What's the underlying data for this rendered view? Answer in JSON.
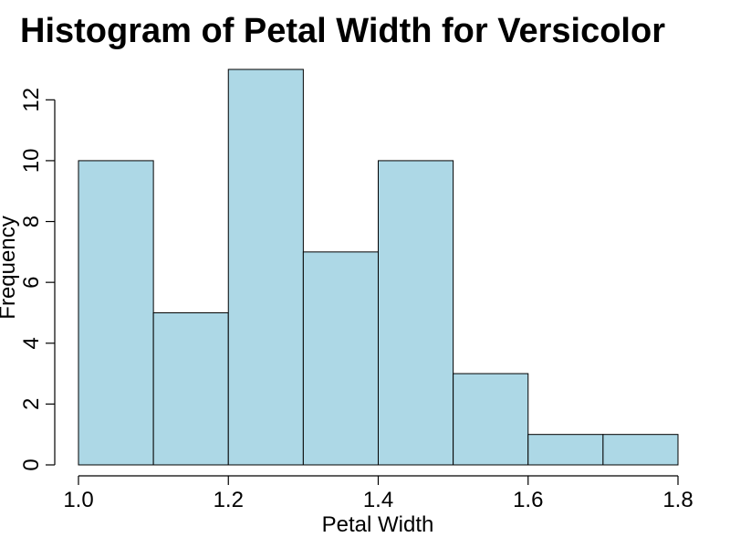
{
  "chart_data": {
    "type": "bar",
    "title": "Histogram of Petal Width for Versicolor",
    "xlabel": "Petal Width",
    "ylabel": "Frequency",
    "bin_edges": [
      1.0,
      1.1,
      1.2,
      1.3,
      1.4,
      1.5,
      1.6,
      1.7,
      1.8
    ],
    "values": [
      10,
      5,
      13,
      7,
      10,
      3,
      1,
      1
    ],
    "xlim": [
      1.0,
      1.8
    ],
    "ylim": [
      0,
      13
    ],
    "x_ticks": [
      1.0,
      1.2,
      1.4,
      1.6,
      1.8
    ],
    "x_tick_labels": [
      "1.0",
      "1.2",
      "1.4",
      "1.6",
      "1.8"
    ],
    "y_ticks": [
      0,
      2,
      4,
      6,
      8,
      10,
      12
    ],
    "y_tick_labels": [
      "0",
      "2",
      "4",
      "6",
      "8",
      "10",
      "12"
    ],
    "bar_color": "#ADD8E6",
    "edge_color": "#000000",
    "grid": false,
    "legend": "none"
  }
}
